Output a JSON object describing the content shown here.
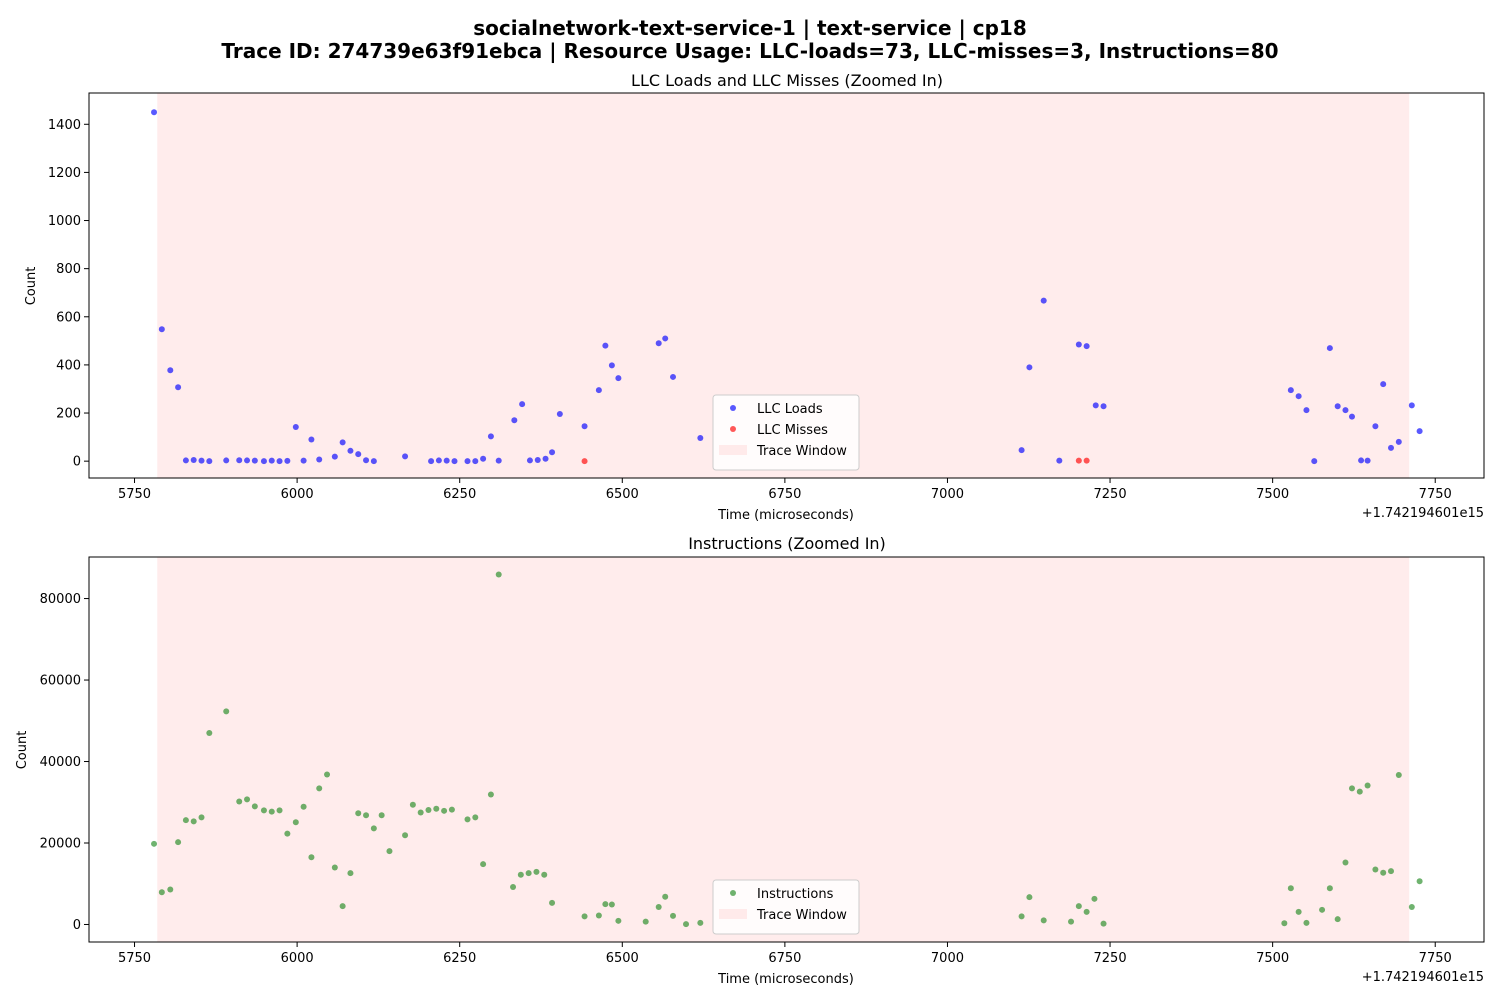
{
  "figure": {
    "title_line1": "socialnetwork-text-service-1 | text-service | cp18",
    "title_line2": "Trace ID: 274739e63f91ebca | Resource Usage: LLC-loads=73, LLC-misses=3, Instructions=80"
  },
  "colors": {
    "loads": "#0000ff",
    "misses": "#ff0000",
    "instructions": "#228b22",
    "trace_window": "#ffc0c0"
  },
  "chart_data": [
    {
      "type": "scatter",
      "title": "LLC Loads and LLC Misses (Zoomed In)",
      "xlabel": "Time (microseconds)",
      "ylabel": "Count",
      "x_offset_label": "+1.742194601e15",
      "xlim": [
        5680,
        7825
      ],
      "ylim": [
        -70,
        1530
      ],
      "xticks": [
        5750,
        6000,
        6250,
        6500,
        6750,
        7000,
        7250,
        7500,
        7750
      ],
      "yticks": [
        0,
        200,
        400,
        600,
        800,
        1000,
        1200,
        1400
      ],
      "trace_window": [
        5785,
        7710
      ],
      "legend_position": "lower center",
      "legend": [
        "LLC Loads",
        "LLC Misses",
        "Trace Window"
      ],
      "series": [
        {
          "name": "LLC Loads",
          "color": "#0000ff",
          "points": [
            [
              5780,
              1450
            ],
            [
              5792,
              548
            ],
            [
              5805,
              378
            ],
            [
              5817,
              307
            ],
            [
              5829,
              3
            ],
            [
              5841,
              5
            ],
            [
              5853,
              2
            ],
            [
              5865,
              0
            ],
            [
              5891,
              3
            ],
            [
              5911,
              4
            ],
            [
              5923,
              3
            ],
            [
              5935,
              2
            ],
            [
              5949,
              0
            ],
            [
              5961,
              2
            ],
            [
              5973,
              0
            ],
            [
              5985,
              1
            ],
            [
              5998,
              142
            ],
            [
              6010,
              2
            ],
            [
              6022,
              90
            ],
            [
              6034,
              7
            ],
            [
              6058,
              19
            ],
            [
              6070,
              78
            ],
            [
              6082,
              43
            ],
            [
              6094,
              29
            ],
            [
              6106,
              4
            ],
            [
              6118,
              0
            ],
            [
              6166,
              20
            ],
            [
              6206,
              0
            ],
            [
              6218,
              3
            ],
            [
              6230,
              2
            ],
            [
              6242,
              0
            ],
            [
              6262,
              0
            ],
            [
              6274,
              0
            ],
            [
              6286,
              10
            ],
            [
              6298,
              103
            ],
            [
              6310,
              2
            ],
            [
              6334,
              170
            ],
            [
              6346,
              237
            ],
            [
              6358,
              3
            ],
            [
              6370,
              5
            ],
            [
              6382,
              10
            ],
            [
              6392,
              37
            ],
            [
              6404,
              196
            ],
            [
              6442,
              145
            ],
            [
              6464,
              295
            ],
            [
              6474,
              480
            ],
            [
              6484,
              398
            ],
            [
              6494,
              345
            ],
            [
              6556,
              490
            ],
            [
              6566,
              510
            ],
            [
              6578,
              350
            ],
            [
              6620,
              96
            ],
            [
              7114,
              46
            ],
            [
              7126,
              390
            ],
            [
              7148,
              667
            ],
            [
              7172,
              2
            ],
            [
              7202,
              485
            ],
            [
              7214,
              478
            ],
            [
              7228,
              232
            ],
            [
              7240,
              228
            ],
            [
              7528,
              295
            ],
            [
              7540,
              270
            ],
            [
              7552,
              212
            ],
            [
              7564,
              0
            ],
            [
              7588,
              470
            ],
            [
              7600,
              228
            ],
            [
              7612,
              212
            ],
            [
              7622,
              185
            ],
            [
              7636,
              3
            ],
            [
              7646,
              2
            ],
            [
              7658,
              145
            ],
            [
              7670,
              320
            ],
            [
              7682,
              55
            ],
            [
              7694,
              80
            ],
            [
              7714,
              232
            ],
            [
              7726,
              125
            ]
          ]
        },
        {
          "name": "LLC Misses",
          "color": "#ff0000",
          "points": [
            [
              6442,
              0
            ],
            [
              7202,
              2
            ],
            [
              7214,
              2
            ]
          ]
        }
      ]
    },
    {
      "type": "scatter",
      "title": "Instructions (Zoomed In)",
      "xlabel": "Time (microseconds)",
      "ylabel": "Count",
      "x_offset_label": "+1.742194601e15",
      "xlim": [
        5680,
        7825
      ],
      "ylim": [
        -4300,
        90200
      ],
      "xticks": [
        5750,
        6000,
        6250,
        6500,
        6750,
        7000,
        7250,
        7500,
        7750
      ],
      "yticks": [
        0,
        20000,
        40000,
        60000,
        80000
      ],
      "trace_window": [
        5785,
        7710
      ],
      "legend_position": "lower center",
      "legend": [
        "Instructions",
        "Trace Window"
      ],
      "series": [
        {
          "name": "Instructions",
          "color": "#228b22",
          "points": [
            [
              5780,
              19800
            ],
            [
              5792,
              7900
            ],
            [
              5805,
              8600
            ],
            [
              5817,
              20200
            ],
            [
              5829,
              25600
            ],
            [
              5841,
              25300
            ],
            [
              5853,
              26300
            ],
            [
              5865,
              47000
            ],
            [
              5891,
              52300
            ],
            [
              5911,
              30200
            ],
            [
              5923,
              30700
            ],
            [
              5935,
              29000
            ],
            [
              5949,
              28000
            ],
            [
              5961,
              27700
            ],
            [
              5973,
              28000
            ],
            [
              5985,
              22300
            ],
            [
              5998,
              25100
            ],
            [
              6010,
              28900
            ],
            [
              6022,
              16500
            ],
            [
              6034,
              33400
            ],
            [
              6046,
              36800
            ],
            [
              6058,
              14000
            ],
            [
              6070,
              4500
            ],
            [
              6082,
              12600
            ],
            [
              6094,
              27300
            ],
            [
              6106,
              26800
            ],
            [
              6118,
              23600
            ],
            [
              6130,
              26800
            ],
            [
              6142,
              18000
            ],
            [
              6166,
              21900
            ],
            [
              6178,
              29400
            ],
            [
              6190,
              27500
            ],
            [
              6202,
              28100
            ],
            [
              6214,
              28400
            ],
            [
              6226,
              27900
            ],
            [
              6238,
              28200
            ],
            [
              6262,
              25800
            ],
            [
              6274,
              26300
            ],
            [
              6286,
              14800
            ],
            [
              6298,
              31900
            ],
            [
              6310,
              85900
            ],
            [
              6332,
              9200
            ],
            [
              6344,
              12200
            ],
            [
              6356,
              12600
            ],
            [
              6368,
              12900
            ],
            [
              6380,
              12200
            ],
            [
              6392,
              5300
            ],
            [
              6442,
              2000
            ],
            [
              6464,
              2200
            ],
            [
              6474,
              5000
            ],
            [
              6484,
              4900
            ],
            [
              6494,
              900
            ],
            [
              6536,
              700
            ],
            [
              6556,
              4300
            ],
            [
              6566,
              6800
            ],
            [
              6578,
              2100
            ],
            [
              6598,
              100
            ],
            [
              6620,
              400
            ],
            [
              7114,
              2000
            ],
            [
              7126,
              6700
            ],
            [
              7148,
              1000
            ],
            [
              7190,
              700
            ],
            [
              7202,
              4500
            ],
            [
              7214,
              3100
            ],
            [
              7226,
              6300
            ],
            [
              7240,
              200
            ],
            [
              7518,
              300
            ],
            [
              7528,
              8900
            ],
            [
              7540,
              3100
            ],
            [
              7552,
              400
            ],
            [
              7576,
              3600
            ],
            [
              7588,
              8900
            ],
            [
              7600,
              1300
            ],
            [
              7612,
              15200
            ],
            [
              7622,
              33400
            ],
            [
              7634,
              32600
            ],
            [
              7646,
              34100
            ],
            [
              7658,
              13500
            ],
            [
              7670,
              12700
            ],
            [
              7682,
              13100
            ],
            [
              7694,
              36700
            ],
            [
              7714,
              4300
            ],
            [
              7726,
              10600
            ]
          ]
        }
      ]
    }
  ]
}
